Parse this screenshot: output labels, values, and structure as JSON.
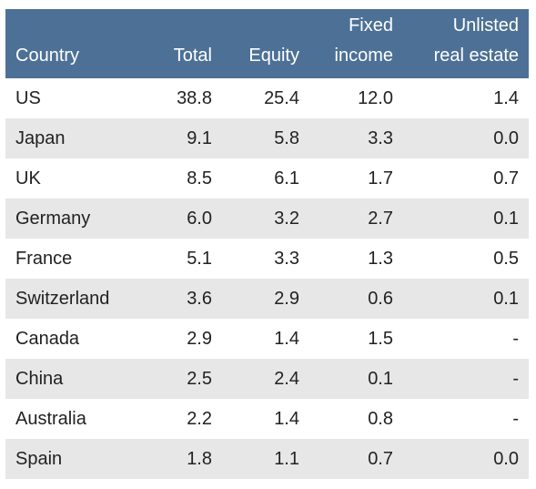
{
  "table": {
    "headers": [
      {
        "line1": "",
        "line2": "Country"
      },
      {
        "line1": "",
        "line2": "Total"
      },
      {
        "line1": "",
        "line2": "Equity"
      },
      {
        "line1": "Fixed",
        "line2": "income"
      },
      {
        "line1": "Unlisted",
        "line2": "real estate"
      }
    ],
    "rows": [
      [
        "US",
        "38.8",
        "25.4",
        "12.0",
        "1.4"
      ],
      [
        "Japan",
        "9.1",
        "5.8",
        "3.3",
        "0.0"
      ],
      [
        "UK",
        "8.5",
        "6.1",
        "1.7",
        "0.7"
      ],
      [
        "Germany",
        "6.0",
        "3.2",
        "2.7",
        "0.1"
      ],
      [
        "France",
        "5.1",
        "3.3",
        "1.3",
        "0.5"
      ],
      [
        "Switzerland",
        "3.6",
        "2.9",
        "0.6",
        "0.1"
      ],
      [
        "Canada",
        "2.9",
        "1.4",
        "1.5",
        "-"
      ],
      [
        "China",
        "2.5",
        "2.4",
        "0.1",
        "-"
      ],
      [
        "Australia",
        "2.2",
        "1.4",
        "0.8",
        "-"
      ],
      [
        "Spain",
        "1.8",
        "1.1",
        "0.7",
        "0.0"
      ]
    ]
  },
  "colors": {
    "header_bg": "#4d7196",
    "header_text": "#ffffff",
    "stripe_bg": "#e7e7e7"
  }
}
